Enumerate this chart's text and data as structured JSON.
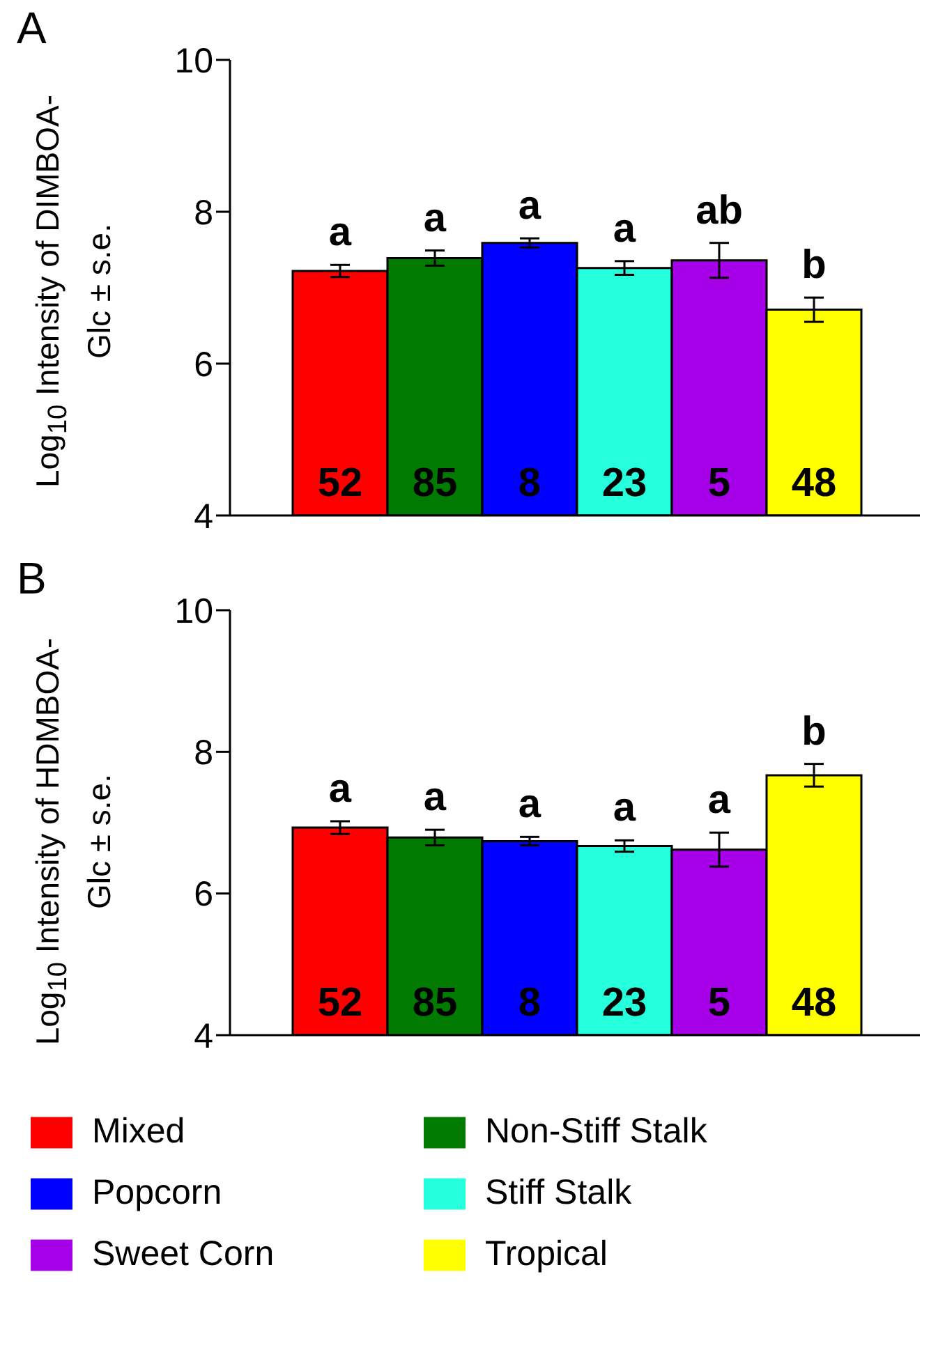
{
  "chart_data": [
    {
      "type": "bar",
      "title": "A",
      "ylabel": "Log$_{10}$ Intensity of DIMBOA-Glc ± s.e.",
      "categories": [
        null
      ],
      "ylim": [
        4,
        10
      ],
      "yticks": [
        4,
        6,
        8,
        10
      ],
      "tick_labels": "y",
      "series": [
        {
          "color": "#ff0000",
          "values": [
            7.22
          ],
          "errors": [
            0.08
          ]
        },
        {
          "color": "#007a00",
          "values": [
            7.39
          ],
          "errors": [
            0.1
          ]
        },
        {
          "color": "#0000ff",
          "values": [
            7.59
          ],
          "errors": [
            0.06
          ]
        },
        {
          "color": "#26ffdc",
          "values": [
            7.26
          ],
          "errors": [
            0.09
          ]
        },
        {
          "color": "#a600e8",
          "values": [
            7.36
          ],
          "errors": [
            0.23
          ]
        },
        {
          "color": "#ffff00",
          "values": [
            6.71
          ],
          "errors": [
            0.16
          ]
        }
      ],
      "annotations": [
        "a",
        "a",
        "a",
        "a",
        "ab",
        "b",
        "52",
        "85",
        "8",
        "23",
        "5",
        "48"
      ]
    },
    {
      "type": "bar",
      "title": "B",
      "ylabel": "Log$_{10}$ Intensity of HDMBOA-Glc ± s.e.",
      "categories": [
        null
      ],
      "ylim": [
        4,
        10
      ],
      "yticks": [
        4,
        6,
        8,
        10
      ],
      "tick_labels": "y",
      "legend": "bottom",
      "series": [
        {
          "name": "Mixed",
          "color": "#ff0000",
          "values": [
            6.93
          ],
          "errors": [
            0.09
          ]
        },
        {
          "name": "Non-Stiff Stalk",
          "color": "#007a00",
          "values": [
            6.79
          ],
          "errors": [
            0.11
          ]
        },
        {
          "name": "Popcorn",
          "color": "#0000ff",
          "values": [
            6.74
          ],
          "errors": [
            0.06
          ]
        },
        {
          "name": "Stiff Stalk",
          "color": "#26ffdc",
          "values": [
            6.67
          ],
          "errors": [
            0.08
          ]
        },
        {
          "name": "Sweet Corn",
          "color": "#a600e8",
          "values": [
            6.62
          ],
          "errors": [
            0.24
          ]
        },
        {
          "name": "Tropical",
          "color": "#ffff00",
          "values": [
            7.67
          ],
          "errors": [
            0.16
          ]
        }
      ],
      "annotations": [
        "a",
        "a",
        "a",
        "a",
        "a",
        "b",
        "52",
        "85",
        "8",
        "23",
        "5",
        "48"
      ]
    }
  ]
}
